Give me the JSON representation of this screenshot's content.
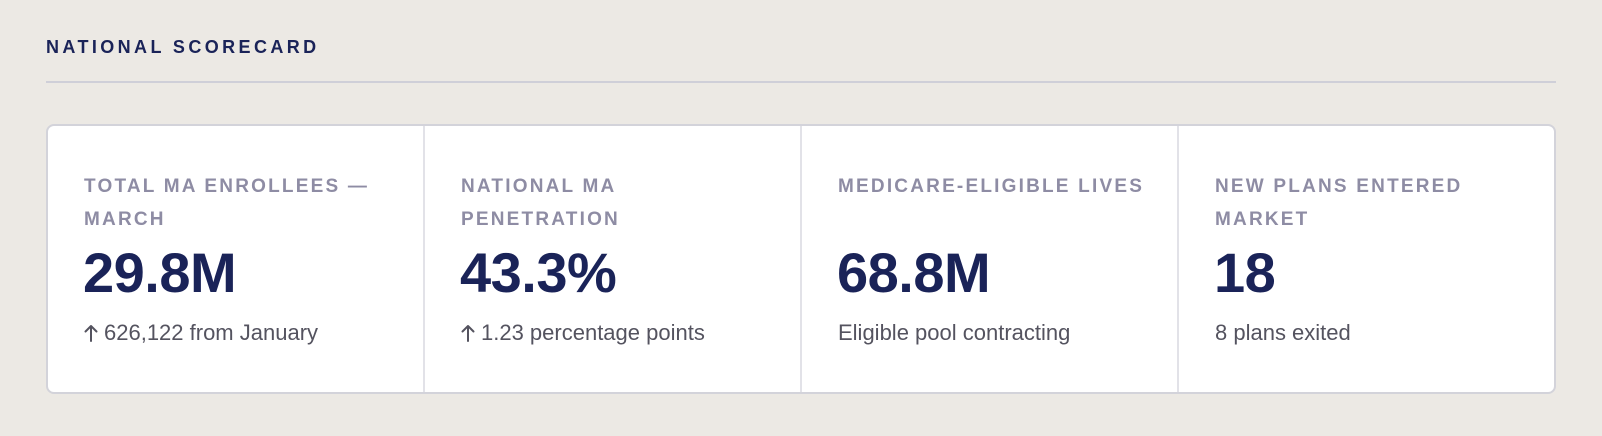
{
  "section": {
    "title": "NATIONAL SCORECARD"
  },
  "cards": [
    {
      "label": "TOTAL MA ENROLLEES — MARCH",
      "value": "29.8M",
      "delta_icon": "arrow-up-icon",
      "delta": "626,122 from January"
    },
    {
      "label": "NATIONAL MA PENETRATION",
      "value": "43.3%",
      "delta_icon": "arrow-up-icon",
      "delta": "1.23 percentage points"
    },
    {
      "label": "MEDICARE-ELIGIBLE LIVES",
      "value": "68.8M",
      "delta": "Eligible pool contracting"
    },
    {
      "label": "NEW PLANS ENTERED MARKET",
      "value": "18",
      "delta": "8 plans exited"
    }
  ],
  "colors": {
    "page_background": "#ECE9E4",
    "title": "#1A2358",
    "value": "#1A2358",
    "label": "#8E8CA4",
    "delta_text": "#54535F",
    "card_background": "#FFFFFF"
  }
}
